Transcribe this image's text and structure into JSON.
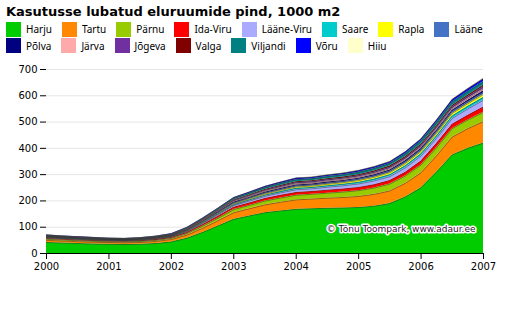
{
  "chart_data": {
    "type": "area",
    "stacked": true,
    "title": "Kasutusse lubatud eluruumide pind, 1000 m2",
    "x": [
      2000,
      2000.25,
      2000.5,
      2000.75,
      2001,
      2001.25,
      2001.5,
      2001.75,
      2002,
      2002.25,
      2002.5,
      2002.75,
      2003,
      2003.25,
      2003.5,
      2003.75,
      2004,
      2004.25,
      2004.5,
      2004.75,
      2005,
      2005.25,
      2005.5,
      2005.75,
      2006,
      2006.25,
      2006.5,
      2006.75,
      2007
    ],
    "series": [
      {
        "name": "Harju",
        "color": "#00cc00",
        "values": [
          42.0,
          40.0,
          38.0,
          36.0,
          35.0,
          34.0,
          35.0,
          38.0,
          44.0,
          58.0,
          80.0,
          105.0,
          130.0,
          143.0,
          155.0,
          162.0,
          168.0,
          170.0,
          172.0,
          173.0,
          175.0,
          180.0,
          190.0,
          215.0,
          250.0,
          310.0,
          375.0,
          400.0,
          420.0
        ]
      },
      {
        "name": "Tartu",
        "color": "#ff8800",
        "values": [
          8.0,
          7.5,
          7.0,
          6.8,
          6.5,
          6.5,
          7.0,
          7.8,
          9.0,
          12.0,
          16.0,
          20.0,
          25.0,
          27.0,
          30.0,
          33.0,
          36.0,
          37.0,
          38.5,
          40.0,
          42.0,
          45.0,
          48.0,
          52.0,
          57.0,
          62.0,
          68.0,
          75.0,
          82.0
        ]
      },
      {
        "name": "Pärnu",
        "color": "#99cc00",
        "values": [
          4.0,
          3.8,
          3.6,
          3.4,
          3.2,
          3.2,
          3.4,
          3.8,
          4.2,
          5.5,
          7.5,
          9.5,
          12.0,
          13.0,
          14.5,
          16.0,
          17.5,
          18.0,
          19.0,
          20.5,
          22.0,
          24.0,
          26.0,
          28.0,
          30.0,
          31.0,
          32.0,
          33.0,
          35.0
        ]
      },
      {
        "name": "Ida-Viru",
        "color": "#ff0000",
        "values": [
          3.5,
          3.3,
          3.2,
          3.0,
          2.8,
          2.8,
          3.0,
          3.2,
          3.5,
          4.5,
          6.0,
          7.5,
          9.0,
          9.5,
          10.0,
          10.5,
          11.0,
          11.0,
          11.5,
          12.0,
          12.5,
          13.0,
          13.5,
          14.0,
          15.0,
          16.0,
          17.0,
          18.0,
          20.0
        ]
      },
      {
        "name": "Lääne-Viru",
        "color": "#aaaaff",
        "values": [
          2.0,
          1.9,
          1.8,
          1.8,
          1.7,
          1.7,
          1.8,
          2.0,
          2.2,
          3.0,
          4.0,
          5.0,
          6.0,
          7.0,
          8.0,
          9.0,
          10.0,
          10.0,
          11.0,
          12.0,
          13.0,
          14.0,
          15.0,
          17.0,
          19.0,
          20.0,
          22.0,
          24.0,
          26.0
        ]
      },
      {
        "name": "Saare",
        "color": "#00cccc",
        "values": [
          1.5,
          1.4,
          1.4,
          1.4,
          1.3,
          1.3,
          1.4,
          1.5,
          1.6,
          2.0,
          2.5,
          3.0,
          3.5,
          4.0,
          4.5,
          5.0,
          5.5,
          5.5,
          5.8,
          6.0,
          6.5,
          7.0,
          7.5,
          8.0,
          8.5,
          9.0,
          9.5,
          10.0,
          11.0
        ]
      },
      {
        "name": "Rapla",
        "color": "#ffff00",
        "values": [
          1.0,
          0.9,
          0.9,
          0.9,
          0.8,
          0.8,
          0.9,
          1.0,
          1.1,
          1.5,
          2.0,
          2.5,
          3.0,
          3.5,
          4.0,
          4.5,
          5.0,
          5.0,
          5.5,
          6.0,
          6.5,
          7.0,
          7.5,
          8.0,
          8.5,
          9.0,
          9.5,
          10.0,
          11.0
        ]
      },
      {
        "name": "Lääne",
        "color": "#4472c4",
        "values": [
          1.0,
          0.9,
          0.9,
          0.9,
          0.8,
          0.8,
          0.9,
          1.0,
          1.1,
          1.5,
          2.0,
          2.5,
          3.0,
          3.2,
          3.5,
          3.8,
          4.0,
          4.0,
          4.2,
          4.3,
          4.5,
          4.8,
          5.0,
          5.2,
          5.5,
          5.8,
          6.0,
          6.5,
          7.0
        ]
      },
      {
        "name": "Põlva",
        "color": "#000080",
        "values": [
          1.0,
          0.9,
          0.9,
          0.9,
          0.8,
          0.8,
          0.9,
          1.0,
          1.1,
          1.5,
          2.0,
          2.5,
          3.0,
          3.2,
          3.5,
          3.8,
          4.0,
          4.0,
          4.2,
          4.3,
          4.5,
          4.8,
          5.0,
          5.2,
          5.5,
          5.8,
          6.0,
          6.5,
          7.0
        ]
      },
      {
        "name": "Järva",
        "color": "#ffaaaa",
        "values": [
          1.0,
          0.9,
          0.9,
          0.9,
          0.8,
          0.8,
          0.9,
          1.0,
          1.1,
          1.5,
          2.0,
          2.5,
          3.0,
          3.2,
          3.5,
          3.8,
          4.0,
          4.0,
          4.2,
          4.3,
          4.5,
          4.8,
          5.0,
          5.2,
          5.5,
          5.8,
          6.0,
          6.5,
          7.0
        ]
      },
      {
        "name": "Jõgeva",
        "color": "#7030a0",
        "values": [
          1.0,
          0.9,
          0.9,
          0.9,
          0.8,
          0.8,
          0.9,
          1.0,
          1.1,
          1.5,
          2.0,
          2.5,
          3.0,
          3.2,
          3.5,
          3.8,
          4.0,
          4.0,
          4.2,
          4.3,
          4.5,
          4.8,
          5.0,
          5.2,
          5.5,
          5.8,
          6.0,
          6.5,
          7.0
        ]
      },
      {
        "name": "Valga",
        "color": "#800000",
        "values": [
          1.0,
          0.9,
          0.9,
          0.9,
          0.8,
          0.8,
          0.9,
          1.0,
          1.1,
          1.5,
          2.0,
          2.5,
          3.0,
          3.2,
          3.5,
          3.8,
          4.0,
          4.0,
          4.2,
          4.3,
          4.5,
          4.8,
          5.0,
          5.5,
          6.0,
          6.0,
          6.0,
          6.5,
          7.0
        ]
      },
      {
        "name": "Viljandi",
        "color": "#008080",
        "values": [
          2.0,
          1.9,
          1.8,
          1.8,
          1.7,
          1.7,
          1.8,
          2.0,
          2.2,
          3.0,
          4.0,
          5.0,
          6.0,
          6.5,
          7.0,
          7.5,
          8.0,
          8.0,
          8.2,
          8.5,
          9.0,
          9.5,
          10.0,
          11.0,
          12.0,
          13.0,
          13.5,
          14.0,
          14.0
        ]
      },
      {
        "name": "Võru",
        "color": "#0000ff",
        "values": [
          1.5,
          1.4,
          1.4,
          1.4,
          1.3,
          1.3,
          1.4,
          1.5,
          1.6,
          1.8,
          2.0,
          2.5,
          3.0,
          3.5,
          4.0,
          4.5,
          5.0,
          5.0,
          5.2,
          5.3,
          5.5,
          5.8,
          6.0,
          6.5,
          7.0,
          7.5,
          8.0,
          9.0,
          10.0
        ]
      },
      {
        "name": "Hiiu",
        "color": "#ffffcc",
        "values": [
          0.5,
          0.5,
          0.5,
          0.5,
          0.4,
          0.4,
          0.5,
          0.5,
          0.5,
          0.6,
          0.7,
          0.8,
          1.0,
          1.1,
          1.2,
          1.3,
          1.5,
          1.5,
          1.6,
          1.7,
          1.8,
          1.9,
          2.0,
          2.2,
          2.5,
          2.7,
          2.8,
          3.0,
          3.5
        ]
      }
    ],
    "xlim": [
      2000,
      2007
    ],
    "xticks": [
      2000,
      2001,
      2002,
      2003,
      2004,
      2005,
      2006,
      2007
    ],
    "ylim": [
      0,
      700
    ],
    "yticks": [
      0,
      100,
      200,
      300,
      400,
      500,
      600,
      700
    ],
    "grid": true,
    "legend": "top",
    "annotations": [
      "© Tõnu Toompark, www.adaur.ee"
    ]
  }
}
